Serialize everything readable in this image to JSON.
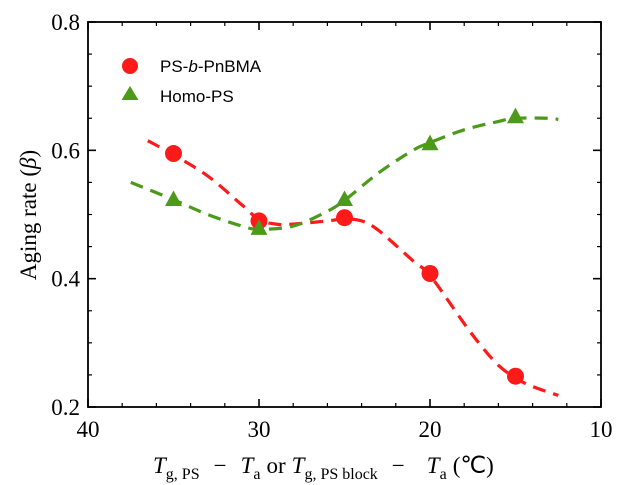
{
  "chart_data": {
    "type": "scatter",
    "xlim": [
      40,
      10
    ],
    "ylim": [
      0.2,
      0.8
    ],
    "x_ticks": [
      40,
      30,
      20,
      10
    ],
    "y_ticks": [
      "0.2",
      "0.4",
      "0.6",
      "0.8"
    ],
    "x_tick_labels": [
      "40",
      "30",
      "20",
      "10"
    ],
    "y_tick_labels": [
      "0.2",
      "0.4",
      "0.6",
      "0.8"
    ],
    "ylabel": {
      "text": "Aging rate (",
      "symbol": "β",
      "close": ")"
    },
    "xlabel": {
      "t1": "T",
      "sub1": "g, PS",
      "minus1": "−",
      "t2": "T",
      "sub2": "a",
      "or": "or",
      "t3": "T",
      "sub3": "g, PS block",
      "minus2": "−",
      "t4": "T",
      "sub4": "a",
      "unit": "(℃)"
    },
    "legend_position": "top-left",
    "series": [
      {
        "name": "PS-b-PnBMA",
        "name_parts": {
          "pre": "PS-",
          "italic": "b",
          "post": "-PnBMA"
        },
        "color": "#ff1a1a",
        "marker": "circle",
        "x": [
          35,
          30,
          25,
          20,
          15
        ],
        "y": [
          0.595,
          0.49,
          0.495,
          0.408,
          0.248
        ],
        "fit_curve": {
          "x": [
            36.5,
            35,
            33,
            31,
            30,
            29,
            28,
            26,
            25,
            24,
            23,
            21,
            20,
            18,
            17,
            16,
            15,
            14,
            12.5
          ],
          "y": [
            0.615,
            0.593,
            0.56,
            0.515,
            0.492,
            0.485,
            0.485,
            0.49,
            0.493,
            0.49,
            0.475,
            0.428,
            0.405,
            0.33,
            0.295,
            0.265,
            0.245,
            0.232,
            0.218
          ]
        }
      },
      {
        "name": "Homo-PS",
        "name_parts": {
          "pre": "Homo-PS",
          "italic": "",
          "post": ""
        },
        "color": "#4d9a1a",
        "marker": "triangle",
        "x": [
          35,
          30,
          25,
          20,
          15
        ],
        "y": [
          0.523,
          0.478,
          0.523,
          0.61,
          0.652
        ],
        "fit_curve": {
          "x": [
            37.5,
            35,
            33,
            31,
            30,
            28,
            26,
            25,
            23,
            21,
            20,
            18,
            16,
            15,
            13,
            12.5
          ],
          "y": [
            0.55,
            0.523,
            0.5,
            0.482,
            0.477,
            0.482,
            0.505,
            0.522,
            0.565,
            0.6,
            0.612,
            0.632,
            0.645,
            0.65,
            0.65,
            0.648
          ]
        }
      }
    ]
  }
}
